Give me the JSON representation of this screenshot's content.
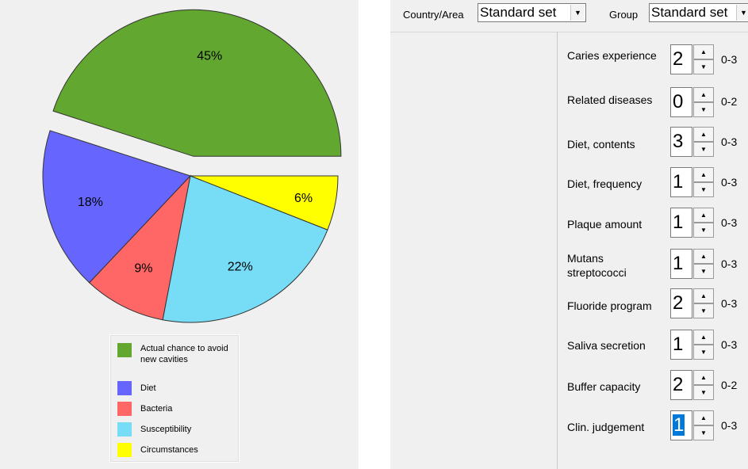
{
  "chart_data": {
    "type": "pie",
    "slices": [
      {
        "name": "Actual chance to avoid new cavities",
        "value": 45,
        "label": "45%",
        "color": "#62a830",
        "exploded": true
      },
      {
        "name": "Diet",
        "value": 18,
        "label": "18%",
        "color": "#6666ff"
      },
      {
        "name": "Bacteria",
        "value": 9,
        "label": "9%",
        "color": "#ff6666"
      },
      {
        "name": "Susceptibility",
        "value": 22,
        "label": "22%",
        "color": "#77ddf7"
      },
      {
        "name": "Circumstances",
        "value": 6,
        "label": "6%",
        "color": "#ffff00"
      }
    ],
    "legend": [
      {
        "label": "Actual chance to avoid new cavities",
        "color": "#62a830"
      },
      {
        "label": "Diet",
        "color": "#6666ff"
      },
      {
        "label": "Bacteria",
        "color": "#ff6666"
      },
      {
        "label": "Susceptibility",
        "color": "#77ddf7"
      },
      {
        "label": "Circumstances",
        "color": "#ffff00"
      }
    ],
    "legend_placement": "bottom"
  },
  "header": {
    "country_label": "Country/Area",
    "country_value": "Standard set",
    "group_label": "Group",
    "group_value": "Standard set"
  },
  "factors": [
    {
      "label": "Caries experience",
      "value": "2",
      "range": "0-3"
    },
    {
      "label": "Related diseases",
      "value": "0",
      "range": "0-2"
    },
    {
      "label": "Diet, contents",
      "value": "3",
      "range": "0-3"
    },
    {
      "label": "Diet, frequency",
      "value": "1",
      "range": "0-3"
    },
    {
      "label": "Plaque amount",
      "value": "1",
      "range": "0-3"
    },
    {
      "label": "Mutans streptococci",
      "value": "1",
      "range": "0-3"
    },
    {
      "label": "Fluoride program",
      "value": "2",
      "range": "0-3"
    },
    {
      "label": "Saliva secretion",
      "value": "1",
      "range": "0-3"
    },
    {
      "label": "Buffer capacity",
      "value": "2",
      "range": "0-2"
    },
    {
      "label": "Clin. judgement",
      "value": "1",
      "range": "0-3",
      "selected": true
    }
  ],
  "icons": {
    "spin_up": "spin-up-icon",
    "spin_down": "spin-down-icon",
    "dropdown": "dropdown-arrow-icon"
  }
}
